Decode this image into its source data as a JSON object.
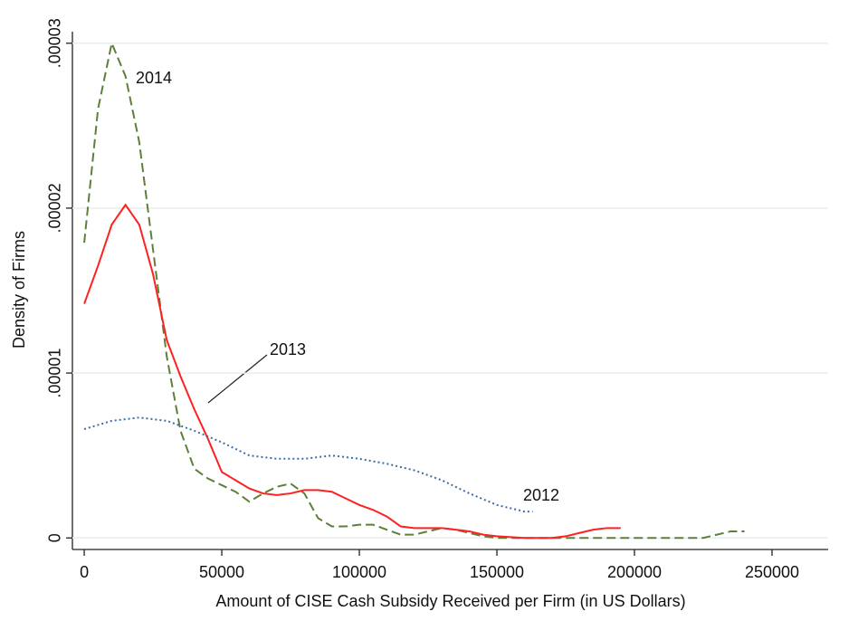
{
  "chart_data": {
    "type": "line",
    "xlabel": "Amount of CISE Cash Subsidy Received per Firm (in US Dollars)",
    "ylabel": "Density of Firms",
    "xlim": [
      -4300,
      270400
    ],
    "ylim": [
      -7e-07,
      3.07e-05
    ],
    "xticks": [
      0,
      50000,
      100000,
      150000,
      200000,
      250000
    ],
    "yticks": [
      0,
      {
        "value": 1e-05,
        "label": ".00001"
      },
      {
        "value": 2e-05,
        "label": ".00002"
      },
      {
        "value": 3e-05,
        "label": ".00003"
      }
    ],
    "grid": true,
    "series": [
      {
        "name": "2014",
        "color": "#5e7f38",
        "dash": "dashed",
        "x": [
          0,
          5000,
          10000,
          15000,
          20000,
          25000,
          30000,
          35000,
          40000,
          45000,
          50000,
          55000,
          60000,
          65000,
          70000,
          75000,
          80000,
          85000,
          90000,
          95000,
          100000,
          105000,
          110000,
          115000,
          120000,
          125000,
          130000,
          135000,
          140000,
          145000,
          150000,
          160000,
          170000,
          180000,
          190000,
          200000,
          210000,
          220000,
          225000,
          230000,
          235000,
          240000
        ],
        "values": [
          1.79e-05,
          2.6e-05,
          3e-05,
          2.8e-05,
          2.4e-05,
          1.75e-05,
          1.1e-05,
          6.5e-06,
          4.2e-06,
          3.6e-06,
          3.2e-06,
          2.8e-06,
          2.2e-06,
          2.7e-06,
          3.1e-06,
          3.3e-06,
          2.7e-06,
          1.2e-06,
          7e-07,
          7e-07,
          8e-07,
          8e-07,
          5e-07,
          2e-07,
          2e-07,
          4e-07,
          6e-07,
          5e-07,
          3e-07,
          1e-07,
          0,
          0,
          0,
          0,
          0,
          0,
          0,
          0,
          0,
          2e-07,
          4e-07,
          4e-07
        ]
      },
      {
        "name": "2013",
        "color": "#ff2020",
        "dash": "solid",
        "x": [
          0,
          5000,
          10000,
          15000,
          20000,
          25000,
          30000,
          35000,
          40000,
          45000,
          50000,
          55000,
          60000,
          65000,
          70000,
          75000,
          80000,
          85000,
          90000,
          95000,
          100000,
          105000,
          110000,
          115000,
          120000,
          130000,
          135000,
          140000,
          145000,
          150000,
          160000,
          170000,
          175000,
          180000,
          185000,
          190000,
          195000
        ],
        "values": [
          1.42e-05,
          1.65e-05,
          1.9e-05,
          2.02e-05,
          1.9e-05,
          1.6e-05,
          1.2e-05,
          9.8e-06,
          7.8e-06,
          6e-06,
          4e-06,
          3.5e-06,
          3e-06,
          2.7e-06,
          2.6e-06,
          2.7e-06,
          2.9e-06,
          2.9e-06,
          2.8e-06,
          2.4e-06,
          2e-06,
          1.7e-06,
          1.3e-06,
          7e-07,
          6e-07,
          6e-07,
          5e-07,
          4e-07,
          2e-07,
          1e-07,
          0,
          0,
          1e-07,
          3e-07,
          5e-07,
          6e-07,
          6e-07
        ]
      },
      {
        "name": "2012",
        "color": "#3a6ea5",
        "dash": "dotted",
        "x": [
          0,
          10000,
          20000,
          30000,
          40000,
          50000,
          60000,
          70000,
          80000,
          90000,
          100000,
          110000,
          120000,
          130000,
          140000,
          150000,
          160000,
          163000
        ],
        "values": [
          6.6e-06,
          7.1e-06,
          7.3e-06,
          7.1e-06,
          6.5e-06,
          5.8e-06,
          5e-06,
          4.8e-06,
          4.8e-06,
          5e-06,
          4.8e-06,
          4.5e-06,
          4.1e-06,
          3.5e-06,
          2.7e-06,
          2e-06,
          1.6e-06,
          1.6e-06
        ]
      }
    ]
  }
}
